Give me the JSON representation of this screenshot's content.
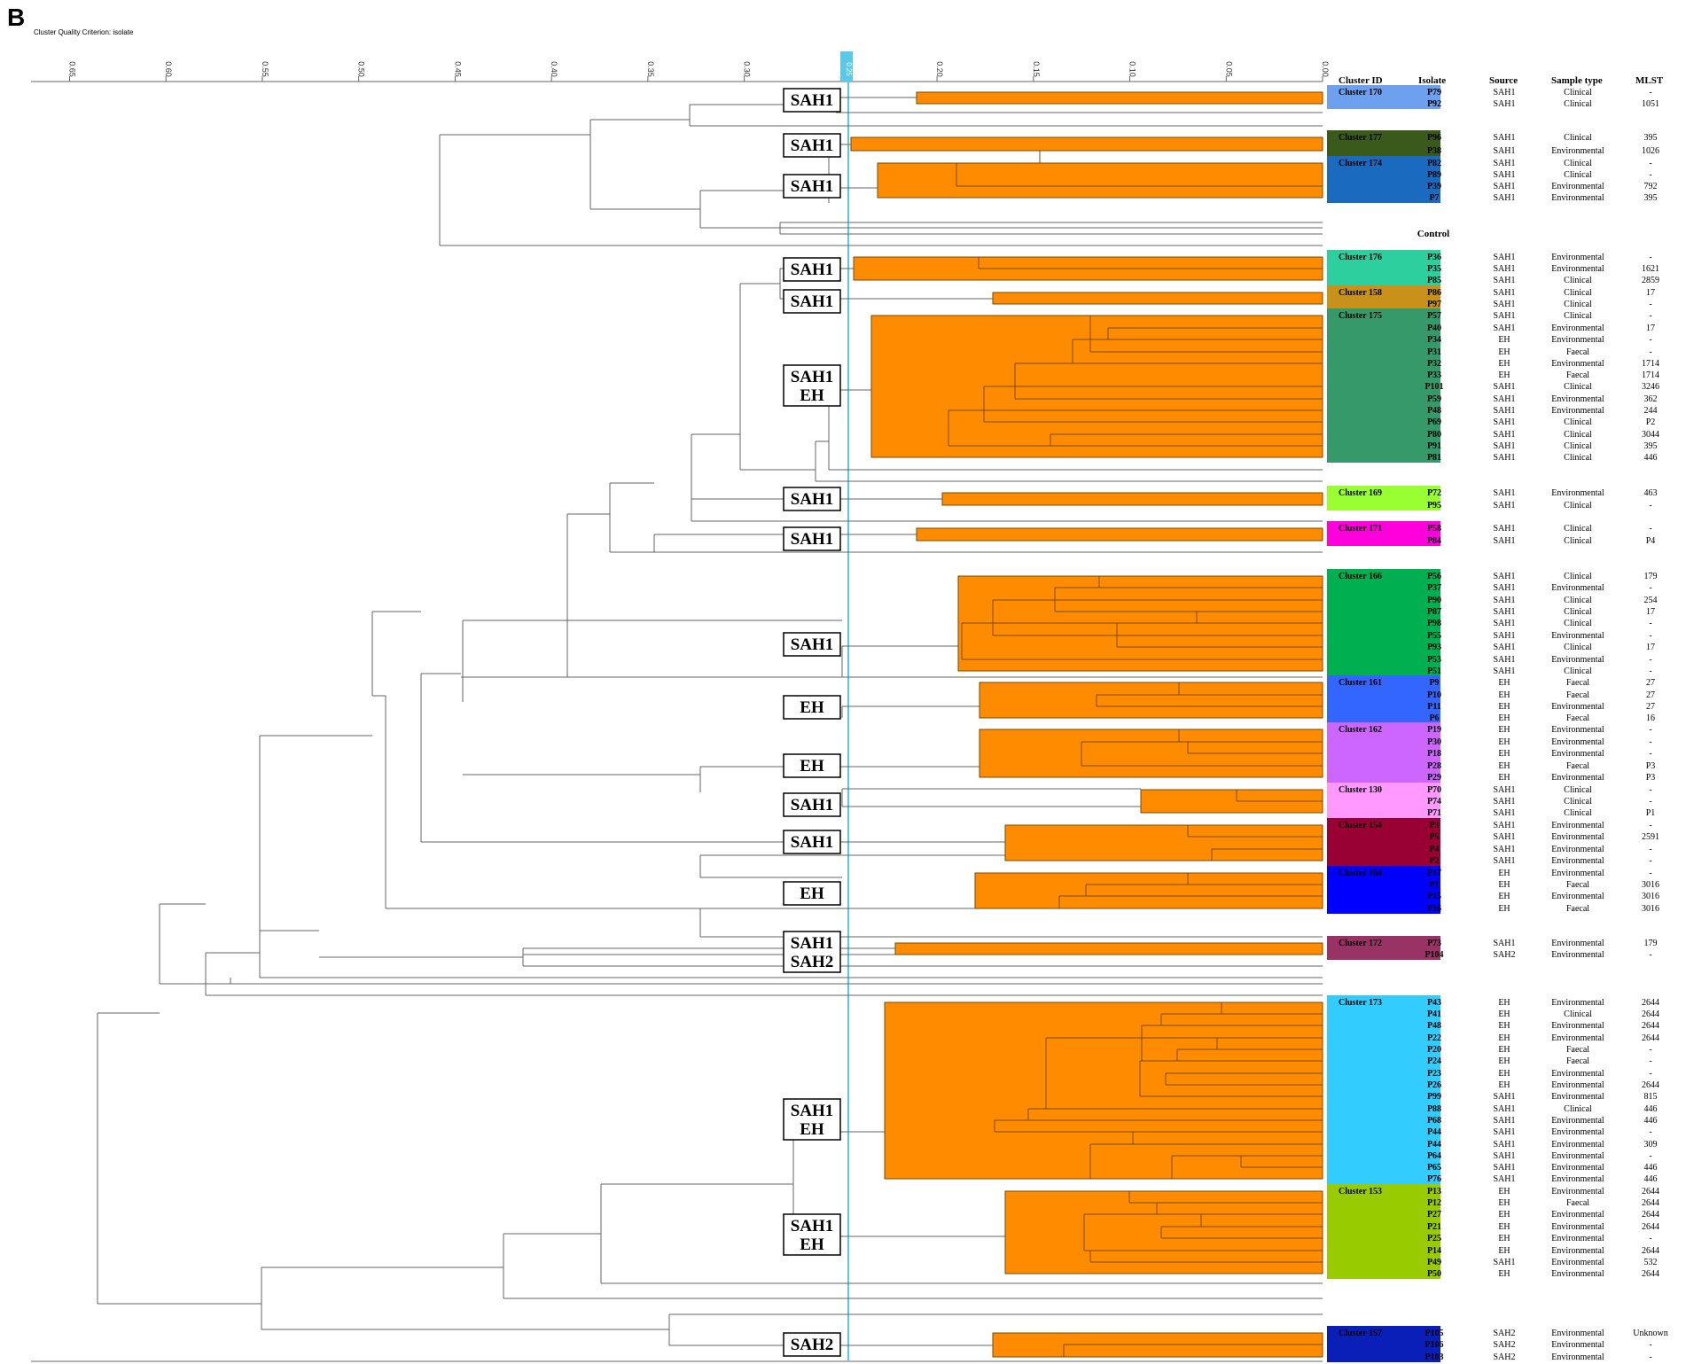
{
  "panel_letter": "B",
  "criterion_label": "Cluster Quality Criterion: isolate",
  "threshold_value": "0.25",
  "axis": {
    "ticks": [
      "0.65",
      "0.60",
      "0.55",
      "0.50",
      "0.45",
      "0.40",
      "0.35",
      "0.30",
      "0.25",
      "0.20",
      "0.15",
      "0.10",
      "0.05",
      "0.00"
    ]
  },
  "table_headers": {
    "cluster_id": "Cluster ID",
    "isolate": "Isolate",
    "source": "Source",
    "sample_type": "Sample type",
    "mlst": "MLST"
  },
  "control_label": "Control",
  "colors": {
    "bar": "#ff8c00",
    "threshold": "#5bc8e8",
    "line": "#666666"
  },
  "clusters": [
    {
      "id": "Cluster 170",
      "color": "#6ea0f0",
      "text_color": "#ffffff"
    },
    {
      "id": "Cluster 177",
      "color": "#3a5a1c",
      "text_color": "#ffffff"
    },
    {
      "id": "Cluster 174",
      "color": "#1a6bc0",
      "text_color": "#ffffff"
    },
    {
      "id": "Cluster 176",
      "color": "#2ecf9f",
      "text_color": "#000000"
    },
    {
      "id": "Cluster 158",
      "color": "#c8921a",
      "text_color": "#000000"
    },
    {
      "id": "Cluster 175",
      "color": "#36996a",
      "text_color": "#ffffff"
    },
    {
      "id": "Cluster 169",
      "color": "#99ff33",
      "text_color": "#000000"
    },
    {
      "id": "Cluster 171",
      "color": "#ff00dd",
      "text_color": "#000000"
    },
    {
      "id": "Cluster 166",
      "color": "#00b050",
      "text_color": "#000000"
    },
    {
      "id": "Cluster 161",
      "color": "#3366ff",
      "text_color": "#000000"
    },
    {
      "id": "Cluster 162",
      "color": "#cc66ff",
      "text_color": "#000000"
    },
    {
      "id": "Cluster 130",
      "color": "#ff99ff",
      "text_color": "#000000"
    },
    {
      "id": "Cluster 154",
      "color": "#990033",
      "text_color": "#ffffff"
    },
    {
      "id": "Cluster 164",
      "color": "#0000ff",
      "text_color": "#000000"
    },
    {
      "id": "Cluster 172",
      "color": "#993366",
      "text_color": "#ffffff"
    },
    {
      "id": "Cluster 173",
      "color": "#33ccff",
      "text_color": "#000000"
    },
    {
      "id": "Cluster 153",
      "color": "#99cc00",
      "text_color": "#000000"
    },
    {
      "id": "Cluster 157",
      "color": "#0a1fb8",
      "text_color": "#ffffff"
    }
  ],
  "rows": [
    {
      "isolate": "P79",
      "source": "SAH1",
      "sample": "Clinical",
      "mlst": "-"
    },
    {
      "isolate": "P92",
      "source": "SAH1",
      "sample": "Clinical",
      "mlst": "1051"
    },
    {
      "isolate": "P96",
      "source": "SAH1",
      "sample": "Clinical",
      "mlst": "395"
    },
    {
      "isolate": "P38",
      "source": "SAH1",
      "sample": "Environmental",
      "mlst": "1026"
    },
    {
      "isolate": "P82",
      "source": "SAH1",
      "sample": "Clinical",
      "mlst": "-"
    },
    {
      "isolate": "P89",
      "source": "SAH1",
      "sample": "Clinical",
      "mlst": "-"
    },
    {
      "isolate": "P39",
      "source": "SAH1",
      "sample": "Environmental",
      "mlst": "792"
    },
    {
      "isolate": "P7",
      "source": "SAH1",
      "sample": "Environmental",
      "mlst": "395"
    },
    {
      "isolate": "P36",
      "source": "SAH1",
      "sample": "Environmental",
      "mlst": "-"
    },
    {
      "isolate": "P35",
      "source": "SAH1",
      "sample": "Environmental",
      "mlst": "1621"
    },
    {
      "isolate": "P85",
      "source": "SAH1",
      "sample": "Clinical",
      "mlst": "2859"
    },
    {
      "isolate": "P86",
      "source": "SAH1",
      "sample": "Clinical",
      "mlst": "17"
    },
    {
      "isolate": "P97",
      "source": "SAH1",
      "sample": "Clinical",
      "mlst": "-"
    },
    {
      "isolate": "P57",
      "source": "SAH1",
      "sample": "Clinical",
      "mlst": "-"
    },
    {
      "isolate": "P40",
      "source": "SAH1",
      "sample": "Environmental",
      "mlst": "17"
    },
    {
      "isolate": "P34",
      "source": "EH",
      "sample": "Environmental",
      "mlst": "-"
    },
    {
      "isolate": "P31",
      "source": "EH",
      "sample": "Faecal",
      "mlst": "-"
    },
    {
      "isolate": "P32",
      "source": "EH",
      "sample": "Environmental",
      "mlst": "1714"
    },
    {
      "isolate": "P33",
      "source": "EH",
      "sample": "Faecal",
      "mlst": "1714"
    },
    {
      "isolate": "P101",
      "source": "SAH1",
      "sample": "Clinical",
      "mlst": "3246"
    },
    {
      "isolate": "P59",
      "source": "SAH1",
      "sample": "Environmental",
      "mlst": "362"
    },
    {
      "isolate": "P48",
      "source": "SAH1",
      "sample": "Environmental",
      "mlst": "244"
    },
    {
      "isolate": "P69",
      "source": "SAH1",
      "sample": "Clinical",
      "mlst": "P2"
    },
    {
      "isolate": "P80",
      "source": "SAH1",
      "sample": "Clinical",
      "mlst": "3044"
    },
    {
      "isolate": "P91",
      "source": "SAH1",
      "sample": "Clinical",
      "mlst": "395"
    },
    {
      "isolate": "P81",
      "source": "SAH1",
      "sample": "Clinical",
      "mlst": "446"
    },
    {
      "isolate": "P72",
      "source": "SAH1",
      "sample": "Environmental",
      "mlst": "463"
    },
    {
      "isolate": "P95",
      "source": "SAH1",
      "sample": "Clinical",
      "mlst": "-"
    },
    {
      "isolate": "P58",
      "source": "SAH1",
      "sample": "Clinical",
      "mlst": "-"
    },
    {
      "isolate": "P84",
      "source": "SAH1",
      "sample": "Clinical",
      "mlst": "P4"
    },
    {
      "isolate": "P56",
      "source": "SAH1",
      "sample": "Clinical",
      "mlst": "179"
    },
    {
      "isolate": "P37",
      "source": "SAH1",
      "sample": "Environmental",
      "mlst": "-"
    },
    {
      "isolate": "P90",
      "source": "SAH1",
      "sample": "Clinical",
      "mlst": "254"
    },
    {
      "isolate": "P87",
      "source": "SAH1",
      "sample": "Clinical",
      "mlst": "17"
    },
    {
      "isolate": "P98",
      "source": "SAH1",
      "sample": "Clinical",
      "mlst": "-"
    },
    {
      "isolate": "P55",
      "source": "SAH1",
      "sample": "Environmental",
      "mlst": "-"
    },
    {
      "isolate": "P93",
      "source": "SAH1",
      "sample": "Clinical",
      "mlst": "17"
    },
    {
      "isolate": "P53",
      "source": "SAH1",
      "sample": "Environmental",
      "mlst": "-"
    },
    {
      "isolate": "P51",
      "source": "SAH1",
      "sample": "Clinical",
      "mlst": "-"
    },
    {
      "isolate": "P9",
      "source": "EH",
      "sample": "Faecal",
      "mlst": "27"
    },
    {
      "isolate": "P10",
      "source": "EH",
      "sample": "Faecal",
      "mlst": "27"
    },
    {
      "isolate": "P11",
      "source": "EH",
      "sample": "Environmental",
      "mlst": "27"
    },
    {
      "isolate": "P6",
      "source": "EH",
      "sample": "Faecal",
      "mlst": "16"
    },
    {
      "isolate": "P19",
      "source": "EH",
      "sample": "Environmental",
      "mlst": "-"
    },
    {
      "isolate": "P30",
      "source": "EH",
      "sample": "Environmental",
      "mlst": "-"
    },
    {
      "isolate": "P18",
      "source": "EH",
      "sample": "Environmental",
      "mlst": "-"
    },
    {
      "isolate": "P28",
      "source": "EH",
      "sample": "Faecal",
      "mlst": "P3"
    },
    {
      "isolate": "P29",
      "source": "EH",
      "sample": "Environmental",
      "mlst": "P3"
    },
    {
      "isolate": "P70",
      "source": "SAH1",
      "sample": "Clinical",
      "mlst": "-"
    },
    {
      "isolate": "P74",
      "source": "SAH1",
      "sample": "Clinical",
      "mlst": "-"
    },
    {
      "isolate": "P71",
      "source": "SAH1",
      "sample": "Clinical",
      "mlst": "P1"
    },
    {
      "isolate": "P3",
      "source": "SAH1",
      "sample": "Environmental",
      "mlst": "-"
    },
    {
      "isolate": "P5",
      "source": "SAH1",
      "sample": "Environmental",
      "mlst": "2591"
    },
    {
      "isolate": "P4",
      "source": "SAH1",
      "sample": "Environmental",
      "mlst": "-"
    },
    {
      "isolate": "P2",
      "source": "SAH1",
      "sample": "Environmental",
      "mlst": "-"
    },
    {
      "isolate": "P17",
      "source": "EH",
      "sample": "Environmental",
      "mlst": "-"
    },
    {
      "isolate": "P1",
      "source": "EH",
      "sample": "Faecal",
      "mlst": "3016"
    },
    {
      "isolate": "P15",
      "source": "EH",
      "sample": "Environmental",
      "mlst": "3016"
    },
    {
      "isolate": "P16",
      "source": "EH",
      "sample": "Faecal",
      "mlst": "3016"
    },
    {
      "isolate": "P73",
      "source": "SAH1",
      "sample": "Environmental",
      "mlst": "179"
    },
    {
      "isolate": "P104",
      "source": "SAH2",
      "sample": "Environmental",
      "mlst": "-"
    },
    {
      "isolate": "P43",
      "source": "EH",
      "sample": "Environmental",
      "mlst": "2644"
    },
    {
      "isolate": "P41",
      "source": "EH",
      "sample": "Clinical",
      "mlst": "2644"
    },
    {
      "isolate": "P48",
      "source": "EH",
      "sample": "Environmental",
      "mlst": "2644"
    },
    {
      "isolate": "P22",
      "source": "EH",
      "sample": "Environmental",
      "mlst": "2644"
    },
    {
      "isolate": "P20",
      "source": "EH",
      "sample": "Faecal",
      "mlst": "-"
    },
    {
      "isolate": "P24",
      "source": "EH",
      "sample": "Faecal",
      "mlst": "-"
    },
    {
      "isolate": "P23",
      "source": "EH",
      "sample": "Environmental",
      "mlst": "-"
    },
    {
      "isolate": "P26",
      "source": "EH",
      "sample": "Environmental",
      "mlst": "2644"
    },
    {
      "isolate": "P99",
      "source": "SAH1",
      "sample": "Environmental",
      "mlst": "815"
    },
    {
      "isolate": "P88",
      "source": "SAH1",
      "sample": "Clinical",
      "mlst": "446"
    },
    {
      "isolate": "P68",
      "source": "SAH1",
      "sample": "Environmental",
      "mlst": "446"
    },
    {
      "isolate": "P44",
      "source": "SAH1",
      "sample": "Environmental",
      "mlst": "-"
    },
    {
      "isolate": "P44",
      "source": "SAH1",
      "sample": "Environmental",
      "mlst": "309"
    },
    {
      "isolate": "P64",
      "source": "SAH1",
      "sample": "Environmental",
      "mlst": "-"
    },
    {
      "isolate": "P65",
      "source": "SAH1",
      "sample": "Environmental",
      "mlst": "446"
    },
    {
      "isolate": "P76",
      "source": "SAH1",
      "sample": "Environmental",
      "mlst": "446"
    },
    {
      "isolate": "P13",
      "source": "EH",
      "sample": "Environmental",
      "mlst": "2644"
    },
    {
      "isolate": "P12",
      "source": "EH",
      "sample": "Faecal",
      "mlst": "2644"
    },
    {
      "isolate": "P27",
      "source": "EH",
      "sample": "Environmental",
      "mlst": "2644"
    },
    {
      "isolate": "P21",
      "source": "EH",
      "sample": "Environmental",
      "mlst": "2644"
    },
    {
      "isolate": "P25",
      "source": "EH",
      "sample": "Environmental",
      "mlst": "-"
    },
    {
      "isolate": "P14",
      "source": "EH",
      "sample": "Environmental",
      "mlst": "2644"
    },
    {
      "isolate": "P49",
      "source": "SAH1",
      "sample": "Environmental",
      "mlst": "532"
    },
    {
      "isolate": "P50",
      "source": "EH",
      "sample": "Environmental",
      "mlst": "2644"
    },
    {
      "isolate": "P105",
      "source": "SAH2",
      "sample": "Environmental",
      "mlst": "Unknown"
    },
    {
      "isolate": "P106",
      "source": "SAH2",
      "sample": "Environmental",
      "mlst": "-"
    },
    {
      "isolate": "P103",
      "source": "SAH2",
      "sample": "Environmental",
      "mlst": "-"
    }
  ],
  "group_labels": [
    {
      "lines": [
        "SAH1"
      ]
    },
    {
      "lines": [
        "SAH1"
      ]
    },
    {
      "lines": [
        "SAH1"
      ]
    },
    {
      "lines": [
        "SAH1"
      ]
    },
    {
      "lines": [
        "SAH1"
      ]
    },
    {
      "lines": [
        "SAH1",
        "EH"
      ]
    },
    {
      "lines": [
        "SAH1"
      ]
    },
    {
      "lines": [
        "SAH1"
      ]
    },
    {
      "lines": [
        "SAH1"
      ]
    },
    {
      "lines": [
        "EH"
      ]
    },
    {
      "lines": [
        "EH"
      ]
    },
    {
      "lines": [
        "SAH1"
      ]
    },
    {
      "lines": [
        "SAH1"
      ]
    },
    {
      "lines": [
        "EH"
      ]
    },
    {
      "lines": [
        "SAH1",
        "SAH2"
      ]
    },
    {
      "lines": [
        "SAH1",
        "EH"
      ]
    },
    {
      "lines": [
        "SAH1",
        "EH"
      ]
    },
    {
      "lines": [
        "SAH2"
      ]
    }
  ]
}
